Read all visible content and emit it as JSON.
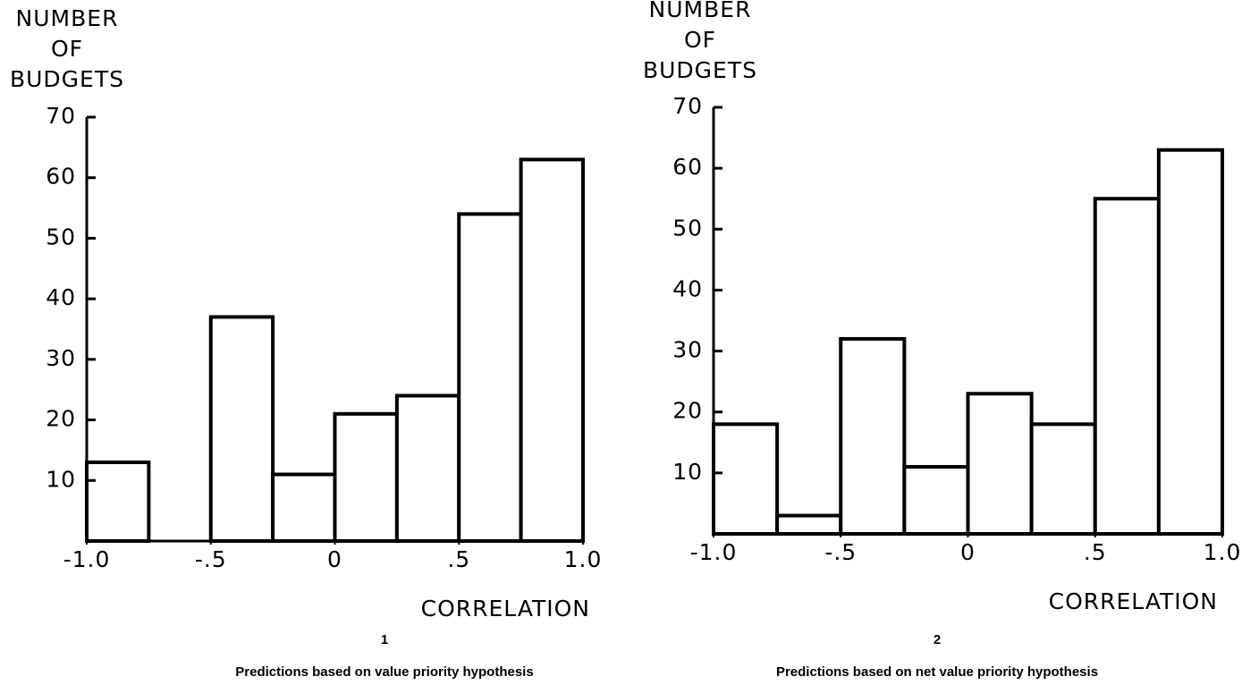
{
  "chart_data": [
    {
      "type": "histogram",
      "ylabel": [
        "NUMBER",
        "OF",
        "BUDGETS"
      ],
      "xlabel": "CORRELATION",
      "figure_number": "1",
      "caption": "Predictions based on value priority hypothesis",
      "bins": [
        -1.0,
        -0.75,
        -0.5,
        -0.25,
        0,
        0.25,
        0.5,
        0.75,
        1.0
      ],
      "values": [
        13,
        0,
        37,
        11,
        21,
        24,
        54,
        63
      ],
      "color": "#ffffff",
      "xlim": [
        -1.0,
        1.0
      ],
      "xticks": [
        {
          "value": -1.0,
          "label": "-1.0"
        },
        {
          "value": -0.5,
          "label": "-.5"
        },
        0,
        {
          "value": 0.5,
          "label": ".5"
        },
        {
          "value": 1.0,
          "label": "1.0"
        }
      ],
      "ylim": [
        0,
        70
      ],
      "yticks": [
        10,
        20,
        30,
        40,
        50,
        60,
        70
      ]
    },
    {
      "type": "histogram",
      "ylabel": [
        "NUMBER",
        "OF",
        "BUDGETS"
      ],
      "xlabel": "CORRELATION",
      "figure_number": "2",
      "caption": "Predictions based on net value priority hypothesis",
      "bins": [
        -1.0,
        -0.75,
        -0.5,
        -0.25,
        0,
        0.25,
        0.5,
        0.75,
        1.0
      ],
      "values": [
        18,
        3,
        32,
        11,
        23,
        18,
        55,
        63
      ],
      "color": "#ffffff",
      "xlim": [
        -1.0,
        1.0
      ],
      "xticks": [
        {
          "value": -1.0,
          "label": "-1.0"
        },
        {
          "value": -0.5,
          "label": "-.5"
        },
        0,
        {
          "value": 0.5,
          "label": ".5"
        },
        {
          "value": 1.0,
          "label": "1.0"
        }
      ],
      "ylim": [
        0,
        70
      ],
      "yticks": [
        10,
        20,
        30,
        40,
        50,
        60,
        70
      ]
    }
  ]
}
